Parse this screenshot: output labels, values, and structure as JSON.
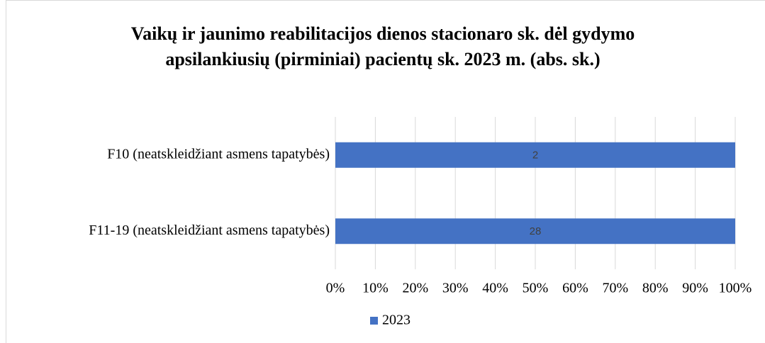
{
  "chart_data": {
    "type": "bar",
    "orientation": "horizontal",
    "stacking": "percent",
    "title": [
      "Vaikų ir jaunimo reabilitacijos dienos stacionaro sk. dėl gydymo",
      "apsilankiusių (pirminiai) pacientų sk. 2023 m. (abs. sk.)"
    ],
    "categories": [
      "F10 (neatskleidžiant asmens tapatybės)",
      "F11-19 (neatskleidžiant asmens tapatybės)"
    ],
    "series": [
      {
        "name": "2023",
        "color": "#4472c4",
        "values": [
          2,
          28
        ]
      }
    ],
    "xlim": [
      0,
      100
    ],
    "xticks": [
      {
        "value": 0,
        "label": "0%"
      },
      {
        "value": 10,
        "label": "10%"
      },
      {
        "value": 20,
        "label": "20%"
      },
      {
        "value": 30,
        "label": "30%"
      },
      {
        "value": 40,
        "label": "40%"
      },
      {
        "value": 50,
        "label": "50%"
      },
      {
        "value": 60,
        "label": "60%"
      },
      {
        "value": 70,
        "label": "70%"
      },
      {
        "value": 80,
        "label": "80%"
      },
      {
        "value": 90,
        "label": "90%"
      },
      {
        "value": 100,
        "label": "100%"
      }
    ],
    "grid": true,
    "legend": "bottom"
  }
}
